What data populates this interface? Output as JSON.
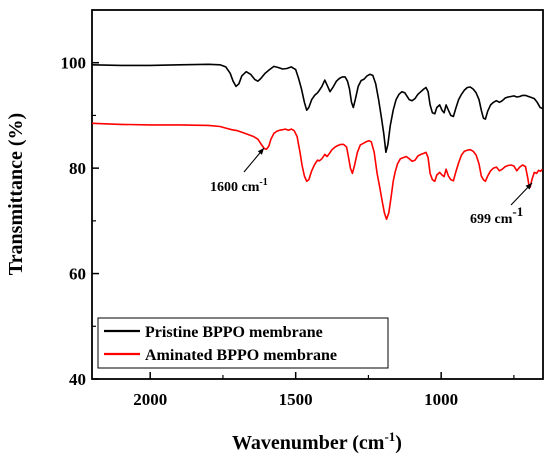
{
  "chart_data": {
    "type": "line",
    "title": "",
    "xlabel": "Wavenumber (cm",
    "xlabel_sup": "-1",
    "xlabel_close": ")",
    "ylabel": "Transmittance (%)",
    "xlim": [
      2200,
      650
    ],
    "ylim": [
      40,
      110
    ],
    "x_reversed": true,
    "x_ticks": [
      2000,
      1500,
      1000
    ],
    "y_ticks": [
      40,
      60,
      80,
      100
    ],
    "legend_position": "bottom-left",
    "series": [
      {
        "name": "Pristine BPPO membrane",
        "color": "#000000",
        "points": [
          [
            2200,
            99.6
          ],
          [
            2100,
            99.5
          ],
          [
            2000,
            99.5
          ],
          [
            1900,
            99.6
          ],
          [
            1800,
            99.7
          ],
          [
            1760,
            99.6
          ],
          [
            1740,
            99.2
          ],
          [
            1725,
            98.0
          ],
          [
            1715,
            96.5
          ],
          [
            1705,
            95.5
          ],
          [
            1695,
            96.0
          ],
          [
            1685,
            97.5
          ],
          [
            1670,
            98.3
          ],
          [
            1655,
            97.8
          ],
          [
            1640,
            96.8
          ],
          [
            1630,
            96.5
          ],
          [
            1620,
            97.0
          ],
          [
            1605,
            98.0
          ],
          [
            1590,
            98.7
          ],
          [
            1575,
            99.3
          ],
          [
            1560,
            99.1
          ],
          [
            1545,
            98.8
          ],
          [
            1530,
            98.9
          ],
          [
            1515,
            99.2
          ],
          [
            1500,
            98.7
          ],
          [
            1490,
            97.0
          ],
          [
            1480,
            95.0
          ],
          [
            1470,
            92.5
          ],
          [
            1462,
            91.0
          ],
          [
            1455,
            91.5
          ],
          [
            1445,
            93.0
          ],
          [
            1435,
            93.8
          ],
          [
            1425,
            94.3
          ],
          [
            1418,
            94.8
          ],
          [
            1410,
            95.5
          ],
          [
            1400,
            96.7
          ],
          [
            1390,
            95.5
          ],
          [
            1382,
            94.5
          ],
          [
            1370,
            95.5
          ],
          [
            1360,
            96.5
          ],
          [
            1350,
            97.0
          ],
          [
            1340,
            97.3
          ],
          [
            1330,
            97.3
          ],
          [
            1322,
            96.5
          ],
          [
            1315,
            95.0
          ],
          [
            1308,
            92.5
          ],
          [
            1302,
            91.5
          ],
          [
            1295,
            93.0
          ],
          [
            1285,
            95.5
          ],
          [
            1275,
            96.6
          ],
          [
            1265,
            96.9
          ],
          [
            1255,
            97.5
          ],
          [
            1245,
            97.8
          ],
          [
            1235,
            97.6
          ],
          [
            1225,
            96.0
          ],
          [
            1215,
            93.0
          ],
          [
            1205,
            89.5
          ],
          [
            1197,
            86.5
          ],
          [
            1190,
            83.0
          ],
          [
            1183,
            84.5
          ],
          [
            1175,
            88.0
          ],
          [
            1165,
            91.0
          ],
          [
            1155,
            93.0
          ],
          [
            1145,
            94.0
          ],
          [
            1135,
            94.5
          ],
          [
            1125,
            94.3
          ],
          [
            1110,
            93.0
          ],
          [
            1100,
            92.8
          ],
          [
            1090,
            93.2
          ],
          [
            1080,
            94.0
          ],
          [
            1070,
            94.5
          ],
          [
            1060,
            95.0
          ],
          [
            1052,
            95.3
          ],
          [
            1045,
            94.5
          ],
          [
            1038,
            92.0
          ],
          [
            1030,
            90.5
          ],
          [
            1022,
            90.3
          ],
          [
            1015,
            91.5
          ],
          [
            1005,
            92.0
          ],
          [
            997,
            91.0
          ],
          [
            990,
            90.5
          ],
          [
            983,
            92.0
          ],
          [
            975,
            91.0
          ],
          [
            967,
            90.0
          ],
          [
            958,
            89.8
          ],
          [
            950,
            91.3
          ],
          [
            940,
            93.0
          ],
          [
            930,
            94.0
          ],
          [
            920,
            94.8
          ],
          [
            910,
            95.3
          ],
          [
            900,
            95.4
          ],
          [
            890,
            95.0
          ],
          [
            880,
            94.3
          ],
          [
            870,
            93.0
          ],
          [
            862,
            91.0
          ],
          [
            855,
            89.5
          ],
          [
            848,
            89.3
          ],
          [
            840,
            90.8
          ],
          [
            830,
            92.0
          ],
          [
            820,
            92.5
          ],
          [
            810,
            92.8
          ],
          [
            800,
            92.5
          ],
          [
            790,
            92.8
          ],
          [
            780,
            93.3
          ],
          [
            770,
            93.5
          ],
          [
            760,
            93.6
          ],
          [
            750,
            93.7
          ],
          [
            740,
            93.5
          ],
          [
            730,
            93.6
          ],
          [
            720,
            93.8
          ],
          [
            710,
            93.8
          ],
          [
            700,
            93.6
          ],
          [
            690,
            93.4
          ],
          [
            680,
            93.2
          ],
          [
            670,
            92.5
          ],
          [
            660,
            91.5
          ],
          [
            650,
            91.3
          ]
        ]
      },
      {
        "name": "Aminated BPPO membrane",
        "color": "#ff0000",
        "points": [
          [
            2200,
            88.5
          ],
          [
            2100,
            88.3
          ],
          [
            2000,
            88.2
          ],
          [
            1900,
            88.2
          ],
          [
            1800,
            88.1
          ],
          [
            1760,
            87.9
          ],
          [
            1740,
            87.6
          ],
          [
            1720,
            87.3
          ],
          [
            1700,
            87.1
          ],
          [
            1680,
            86.7
          ],
          [
            1660,
            86.3
          ],
          [
            1645,
            86.0
          ],
          [
            1630,
            85.5
          ],
          [
            1618,
            84.5
          ],
          [
            1608,
            83.7
          ],
          [
            1600,
            83.6
          ],
          [
            1592,
            84.2
          ],
          [
            1585,
            85.5
          ],
          [
            1575,
            86.6
          ],
          [
            1565,
            87.0
          ],
          [
            1555,
            87.2
          ],
          [
            1545,
            87.3
          ],
          [
            1535,
            87.4
          ],
          [
            1525,
            87.2
          ],
          [
            1515,
            87.4
          ],
          [
            1505,
            87.1
          ],
          [
            1495,
            86.0
          ],
          [
            1485,
            83.0
          ],
          [
            1478,
            80.5
          ],
          [
            1470,
            78.5
          ],
          [
            1462,
            77.5
          ],
          [
            1455,
            77.8
          ],
          [
            1445,
            79.5
          ],
          [
            1435,
            80.7
          ],
          [
            1425,
            81.5
          ],
          [
            1418,
            81.4
          ],
          [
            1410,
            81.8
          ],
          [
            1400,
            82.6
          ],
          [
            1392,
            82.2
          ],
          [
            1385,
            82.7
          ],
          [
            1375,
            83.5
          ],
          [
            1365,
            84.0
          ],
          [
            1355,
            84.3
          ],
          [
            1345,
            84.5
          ],
          [
            1335,
            84.5
          ],
          [
            1325,
            84.0
          ],
          [
            1318,
            82.0
          ],
          [
            1312,
            80.0
          ],
          [
            1305,
            79.0
          ],
          [
            1298,
            80.5
          ],
          [
            1288,
            83.0
          ],
          [
            1278,
            84.4
          ],
          [
            1268,
            84.7
          ],
          [
            1258,
            85.0
          ],
          [
            1248,
            85.2
          ],
          [
            1240,
            85.0
          ],
          [
            1230,
            83.0
          ],
          [
            1220,
            79.0
          ],
          [
            1210,
            76.0
          ],
          [
            1202,
            73.5
          ],
          [
            1195,
            71.5
          ],
          [
            1188,
            70.3
          ],
          [
            1180,
            71.5
          ],
          [
            1172,
            74.5
          ],
          [
            1165,
            77.5
          ],
          [
            1158,
            79.3
          ],
          [
            1150,
            80.8
          ],
          [
            1140,
            81.8
          ],
          [
            1130,
            82.0
          ],
          [
            1120,
            82.2
          ],
          [
            1110,
            81.8
          ],
          [
            1100,
            81.3
          ],
          [
            1090,
            81.5
          ],
          [
            1080,
            82.3
          ],
          [
            1070,
            82.6
          ],
          [
            1060,
            82.8
          ],
          [
            1052,
            83.0
          ],
          [
            1045,
            82.0
          ],
          [
            1038,
            79.0
          ],
          [
            1030,
            77.8
          ],
          [
            1022,
            77.5
          ],
          [
            1015,
            78.7
          ],
          [
            1005,
            79.2
          ],
          [
            997,
            78.7
          ],
          [
            990,
            78.4
          ],
          [
            983,
            79.8
          ],
          [
            975,
            78.5
          ],
          [
            967,
            77.8
          ],
          [
            958,
            77.6
          ],
          [
            950,
            79.2
          ],
          [
            940,
            81.0
          ],
          [
            930,
            82.5
          ],
          [
            920,
            83.2
          ],
          [
            910,
            83.4
          ],
          [
            900,
            83.5
          ],
          [
            890,
            83.2
          ],
          [
            880,
            82.5
          ],
          [
            870,
            80.8
          ],
          [
            862,
            78.5
          ],
          [
            855,
            77.8
          ],
          [
            848,
            77.5
          ],
          [
            840,
            78.5
          ],
          [
            830,
            79.5
          ],
          [
            820,
            80.0
          ],
          [
            810,
            80.2
          ],
          [
            800,
            79.5
          ],
          [
            790,
            79.8
          ],
          [
            780,
            80.3
          ],
          [
            770,
            80.5
          ],
          [
            760,
            80.6
          ],
          [
            750,
            80.4
          ],
          [
            740,
            79.5
          ],
          [
            730,
            80.2
          ],
          [
            720,
            80.6
          ],
          [
            710,
            80.3
          ],
          [
            702,
            78.0
          ],
          [
            699,
            77.0
          ],
          [
            694,
            76.4
          ],
          [
            688,
            77.8
          ],
          [
            680,
            79.2
          ],
          [
            672,
            79.0
          ],
          [
            665,
            79.6
          ],
          [
            658,
            79.4
          ],
          [
            652,
            79.8
          ]
        ]
      }
    ],
    "annotations": [
      {
        "text": "1600 cm",
        "sup": "-1",
        "x": 1600,
        "y": 83.6
      },
      {
        "text": "699 cm",
        "sup": "-1",
        "x": 699,
        "y": 77.0
      }
    ]
  }
}
